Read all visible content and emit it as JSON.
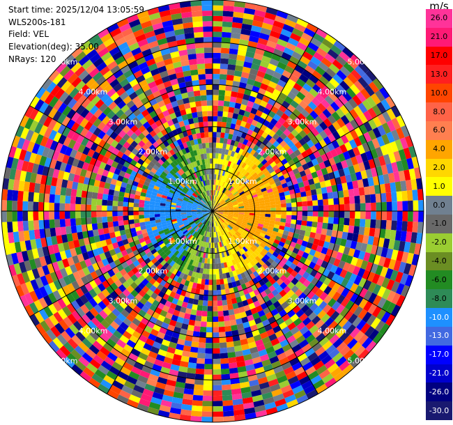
{
  "info": {
    "start_time": "Start time: 2025/12/04 13:05:59",
    "instrument": "WLS200s-181",
    "field": "Field: VEL",
    "elevation": "Elevation(deg): 35.00",
    "nrays": "NRays: 120"
  },
  "colorbar": {
    "unit": "m/s",
    "labels": [
      "26.0",
      "21.0",
      "17.0",
      "13.0",
      "10.0",
      "8.0",
      "6.0",
      "4.0",
      "2.0",
      "1.0",
      "0.0",
      "-1.0",
      "-2.0",
      "-4.0",
      "-6.0",
      "-8.0",
      "-10.0",
      "-13.0",
      "-17.0",
      "-21.0",
      "-26.0",
      "-30.0"
    ],
    "colors": [
      "#ff3399",
      "#ff1a75",
      "#ff0000",
      "#ff2020",
      "#ff4500",
      "#ff6347",
      "#ff7f50",
      "#ffa500",
      "#ffd700",
      "#ffff00",
      "#708090",
      "#696969",
      "#9acd32",
      "#6b8e23",
      "#228b22",
      "#2e8b57",
      "#1e90ff",
      "#4169e1",
      "#0000ff",
      "#0000cd",
      "#000080",
      "#191970"
    ]
  },
  "chart_data": {
    "type": "heatmap",
    "projection": "polar (PPI)",
    "field": "VEL",
    "units": "m/s",
    "nrays": 120,
    "range_ring_labels": [
      "1.00km",
      "2.00km",
      "3.00km",
      "4.00km",
      "5.00km"
    ],
    "spokes_deg": [
      0,
      30,
      60,
      90,
      120,
      150,
      180,
      210,
      240,
      270,
      300,
      330
    ],
    "max_range_km": 5.0,
    "color_scale_range": [
      -30,
      30
    ],
    "pattern": "near field: negative (green/blue) velocities west, positive (yellow/orange) velocities east; beyond ~1.5 km mostly noise/random colors"
  }
}
